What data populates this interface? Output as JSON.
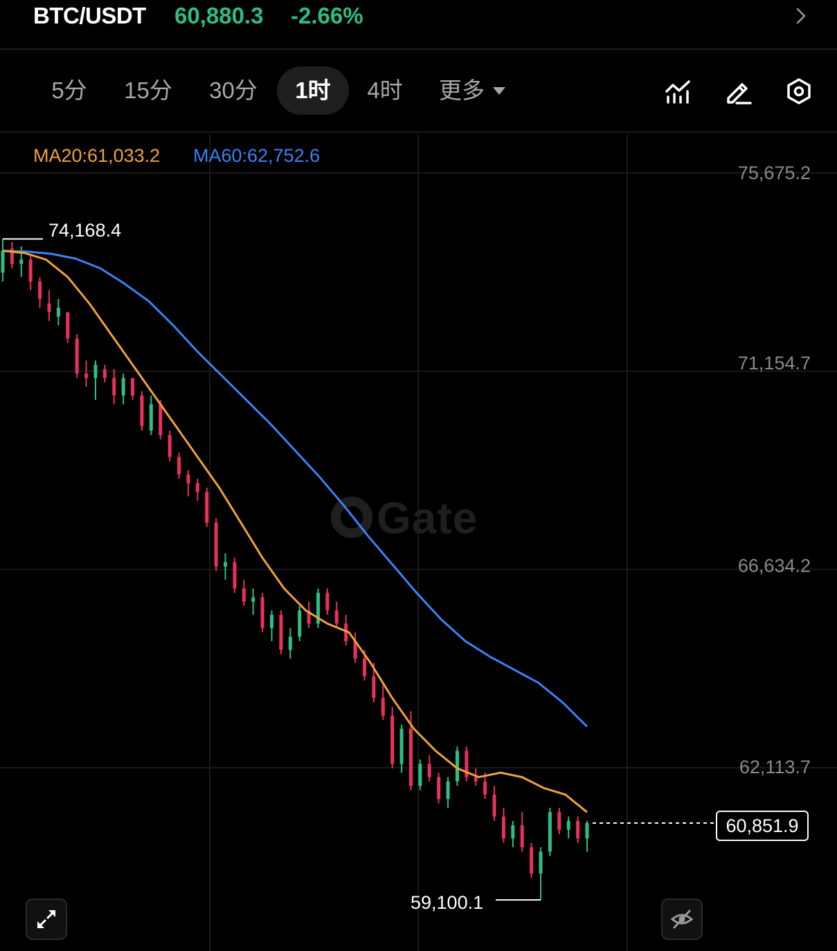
{
  "header": {
    "pair": "BTC/USDT",
    "price": "60,880.3",
    "change": "-2.66%",
    "up_color": "#2ebd85",
    "down_color": "#e8315b"
  },
  "tabs": {
    "items": [
      "5分",
      "15分",
      "30分",
      "1时",
      "4时"
    ],
    "active": "1时",
    "more_label": "更多"
  },
  "indicators": {
    "ma20": "MA20:61,033.2",
    "ma60": "MA60:62,752.6",
    "ma20_color": "#f0a13c",
    "ma60_color": "#3b82f6"
  },
  "y_axis": {
    "labels": [
      "75,675.2",
      "71,154.7",
      "66,634.2",
      "62,113.7"
    ]
  },
  "markers": {
    "high": "74,168.4",
    "low": "59,100.1",
    "last_price": "60,851.9"
  },
  "watermark": "Gate",
  "icons": {
    "forward": "chevron-right-icon",
    "indicators": "indicator-chart-icon",
    "draw": "pencil-draw-icon",
    "settings": "hexagon-settings-icon",
    "expand": "expand-arrows-icon",
    "hide": "eye-slash-icon"
  },
  "chart_data": {
    "type": "candlestick",
    "interval": "1时",
    "y_ticks": [
      75675.2,
      71154.7,
      66634.2,
      62113.7
    ],
    "high": 74168.4,
    "low": 59100.1,
    "last": 60851.9,
    "ma20": {
      "value": 61033.2,
      "points": [
        73900,
        73850,
        73700,
        73300,
        72700,
        72000,
        71300,
        70600,
        69900,
        69200,
        68500,
        67700,
        66900,
        66200,
        65700,
        65400,
        65200,
        64500,
        63700,
        63000,
        62500,
        62100,
        61900,
        62000,
        61900,
        61650,
        61500,
        61100
      ]
    },
    "ma60": {
      "value": 62752.6,
      "points": [
        73900,
        73880,
        73830,
        73720,
        73500,
        73150,
        72750,
        72200,
        71600,
        71050,
        70500,
        69950,
        69350,
        68750,
        68100,
        67400,
        66750,
        66100,
        65500,
        65000,
        64650,
        64350,
        64050,
        63600,
        63050
      ]
    },
    "candles": [
      {
        "o": 73400,
        "h": 74168,
        "l": 73200,
        "c": 73900
      },
      {
        "o": 73950,
        "h": 74100,
        "l": 73500,
        "c": 73600
      },
      {
        "o": 73600,
        "h": 74000,
        "l": 73300,
        "c": 73700
      },
      {
        "o": 73700,
        "h": 73800,
        "l": 73000,
        "c": 73200
      },
      {
        "o": 73200,
        "h": 73300,
        "l": 72600,
        "c": 72800
      },
      {
        "o": 72700,
        "h": 73000,
        "l": 72300,
        "c": 72500
      },
      {
        "o": 72400,
        "h": 72800,
        "l": 72200,
        "c": 72600
      },
      {
        "o": 72500,
        "h": 72500,
        "l": 71800,
        "c": 71900
      },
      {
        "o": 71900,
        "h": 72000,
        "l": 71000,
        "c": 71100
      },
      {
        "o": 71100,
        "h": 71400,
        "l": 70800,
        "c": 71000
      },
      {
        "o": 71000,
        "h": 71400,
        "l": 70500,
        "c": 71300
      },
      {
        "o": 71200,
        "h": 71300,
        "l": 70900,
        "c": 71000
      },
      {
        "o": 71000,
        "h": 71200,
        "l": 70400,
        "c": 70600
      },
      {
        "o": 70600,
        "h": 71100,
        "l": 70400,
        "c": 71000
      },
      {
        "o": 71000,
        "h": 71000,
        "l": 70500,
        "c": 70600
      },
      {
        "o": 70600,
        "h": 70700,
        "l": 69800,
        "c": 69900
      },
      {
        "o": 69800,
        "h": 70600,
        "l": 69700,
        "c": 70400
      },
      {
        "o": 70400,
        "h": 70500,
        "l": 69600,
        "c": 69700
      },
      {
        "o": 69700,
        "h": 69800,
        "l": 69100,
        "c": 69200
      },
      {
        "o": 69200,
        "h": 69300,
        "l": 68700,
        "c": 68800
      },
      {
        "o": 68800,
        "h": 68900,
        "l": 68300,
        "c": 68600
      },
      {
        "o": 68600,
        "h": 68700,
        "l": 68200,
        "c": 68400
      },
      {
        "o": 68400,
        "h": 68500,
        "l": 67600,
        "c": 67700
      },
      {
        "o": 67700,
        "h": 67800,
        "l": 66600,
        "c": 66700
      },
      {
        "o": 66700,
        "h": 67000,
        "l": 66400,
        "c": 66800
      },
      {
        "o": 66800,
        "h": 66900,
        "l": 66100,
        "c": 66200
      },
      {
        "o": 66200,
        "h": 66400,
        "l": 65800,
        "c": 65900
      },
      {
        "o": 65900,
        "h": 66200,
        "l": 65600,
        "c": 66000
      },
      {
        "o": 66000,
        "h": 66100,
        "l": 65200,
        "c": 65300
      },
      {
        "o": 65300,
        "h": 65700,
        "l": 65000,
        "c": 65600
      },
      {
        "o": 65600,
        "h": 65700,
        "l": 64700,
        "c": 64800
      },
      {
        "o": 64800,
        "h": 65300,
        "l": 64600,
        "c": 65100
      },
      {
        "o": 65100,
        "h": 65800,
        "l": 65000,
        "c": 65700
      },
      {
        "o": 65700,
        "h": 65900,
        "l": 65300,
        "c": 65400
      },
      {
        "o": 65400,
        "h": 66200,
        "l": 65300,
        "c": 66100
      },
      {
        "o": 66100,
        "h": 66200,
        "l": 65600,
        "c": 65700
      },
      {
        "o": 65700,
        "h": 65900,
        "l": 65300,
        "c": 65400
      },
      {
        "o": 65400,
        "h": 65600,
        "l": 64900,
        "c": 65000
      },
      {
        "o": 65000,
        "h": 65200,
        "l": 64500,
        "c": 64600
      },
      {
        "o": 64600,
        "h": 64800,
        "l": 64100,
        "c": 64200
      },
      {
        "o": 64200,
        "h": 64500,
        "l": 63600,
        "c": 63700
      },
      {
        "o": 63700,
        "h": 64000,
        "l": 63200,
        "c": 63300
      },
      {
        "o": 63300,
        "h": 63500,
        "l": 62100,
        "c": 62200
      },
      {
        "o": 62200,
        "h": 63100,
        "l": 62000,
        "c": 63000
      },
      {
        "o": 63000,
        "h": 63400,
        "l": 61600,
        "c": 61700
      },
      {
        "o": 61700,
        "h": 62300,
        "l": 61600,
        "c": 62200
      },
      {
        "o": 62200,
        "h": 62400,
        "l": 61800,
        "c": 61900
      },
      {
        "o": 61900,
        "h": 62000,
        "l": 61300,
        "c": 61400
      },
      {
        "o": 61400,
        "h": 61900,
        "l": 61200,
        "c": 61800
      },
      {
        "o": 61800,
        "h": 62600,
        "l": 61700,
        "c": 62500
      },
      {
        "o": 62500,
        "h": 62600,
        "l": 61800,
        "c": 61900
      },
      {
        "o": 61900,
        "h": 62100,
        "l": 61700,
        "c": 61800
      },
      {
        "o": 61800,
        "h": 62000,
        "l": 61400,
        "c": 61500
      },
      {
        "o": 61500,
        "h": 61700,
        "l": 60900,
        "c": 61000
      },
      {
        "o": 61000,
        "h": 61200,
        "l": 60400,
        "c": 60500
      },
      {
        "o": 60500,
        "h": 60900,
        "l": 60300,
        "c": 60800
      },
      {
        "o": 60800,
        "h": 61100,
        "l": 60200,
        "c": 60300
      },
      {
        "o": 60300,
        "h": 60400,
        "l": 59600,
        "c": 59700
      },
      {
        "o": 59700,
        "h": 60300,
        "l": 59100,
        "c": 60200
      },
      {
        "o": 60200,
        "h": 61200,
        "l": 60100,
        "c": 61100
      },
      {
        "o": 61100,
        "h": 61200,
        "l": 60600,
        "c": 60700
      },
      {
        "o": 60700,
        "h": 61000,
        "l": 60500,
        "c": 60900
      },
      {
        "o": 60900,
        "h": 61000,
        "l": 60400,
        "c": 60500
      },
      {
        "o": 60500,
        "h": 60900,
        "l": 60200,
        "c": 60852
      }
    ]
  }
}
